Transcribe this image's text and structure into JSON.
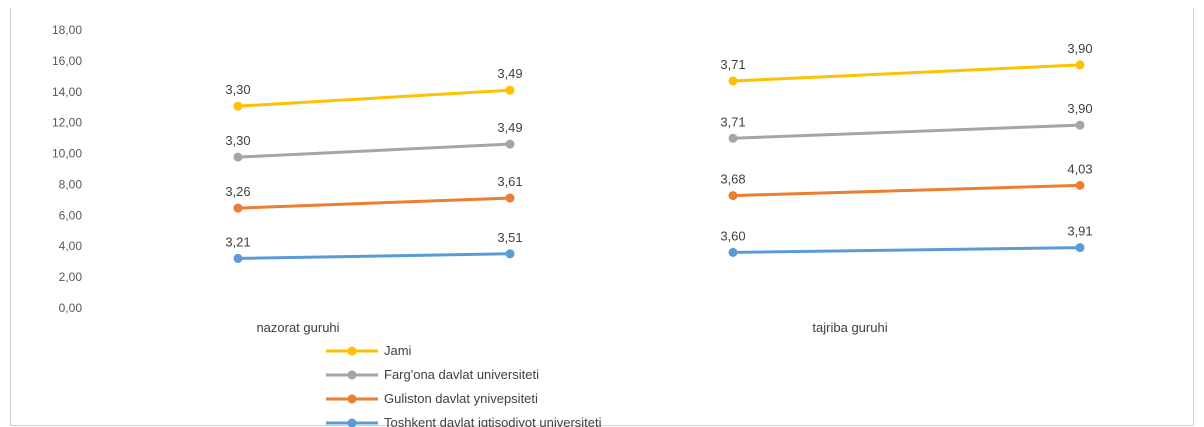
{
  "chart_data": {
    "type": "line",
    "stacked": true,
    "categories": [
      "nazorat guruhi",
      "tajriba guruhi"
    ],
    "y_ticks": [
      "0,00",
      "2,00",
      "4,00",
      "6,00",
      "8,00",
      "10,00",
      "12,00",
      "14,00",
      "16,00",
      "18,00"
    ],
    "ylim": [
      0,
      18
    ],
    "grid": false,
    "legend_position": "bottom",
    "series": [
      {
        "name": "Toshkent  davlat iqtisodiyot universiteti",
        "color": "#5b9bd5",
        "values": [
          [
            3.21,
            3.51
          ],
          [
            3.6,
            3.91
          ]
        ],
        "labels": [
          [
            "3,21",
            "3,51"
          ],
          [
            "3,60",
            "3,91"
          ]
        ]
      },
      {
        "name": "Guliston davlat ynivepsiteti",
        "color": "#ed7d31",
        "values": [
          [
            3.26,
            3.61
          ],
          [
            3.68,
            4.03
          ]
        ],
        "labels": [
          [
            "3,26",
            "3,61"
          ],
          [
            "3,68",
            "4,03"
          ]
        ]
      },
      {
        "name": "   Farg'ona davlat universiteti",
        "color": "#a5a5a5",
        "values": [
          [
            3.3,
            3.49
          ],
          [
            3.71,
            3.9
          ]
        ],
        "labels": [
          [
            "3,30",
            "3,49"
          ],
          [
            "3,71",
            "3,90"
          ]
        ]
      },
      {
        "name": "Jami",
        "color": "#ffc000",
        "values": [
          [
            3.3,
            3.49
          ],
          [
            3.71,
            3.9
          ]
        ],
        "labels": [
          [
            "3,30",
            "3,49"
          ],
          [
            "3,71",
            "3,90"
          ]
        ]
      }
    ]
  }
}
